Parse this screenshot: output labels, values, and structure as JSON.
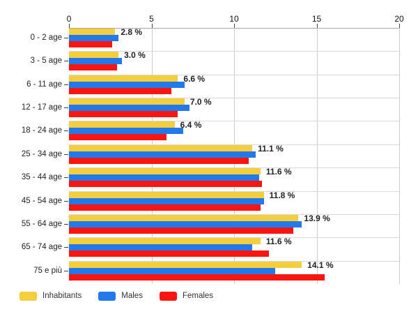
{
  "chart_data": {
    "type": "bar",
    "orientation": "horizontal",
    "categories": [
      "0 - 2 age",
      "3 - 5 age",
      "6 - 11 age",
      "12 - 17 age",
      "18 - 24 age",
      "25 - 34 age",
      "35 - 44 age",
      "45 - 54 age",
      "55 - 64 age",
      "65 - 74 age",
      "75 e più"
    ],
    "series": [
      {
        "name": "Inhabitants",
        "color": "#F5CE3E",
        "values": [
          2.8,
          3.0,
          6.6,
          7.0,
          6.4,
          11.1,
          11.6,
          11.8,
          13.9,
          11.6,
          14.1
        ]
      },
      {
        "name": "Males",
        "color": "#2279EC",
        "values": [
          3.0,
          3.2,
          7.0,
          7.3,
          6.9,
          11.3,
          11.5,
          11.8,
          14.1,
          11.1,
          12.5
        ]
      },
      {
        "name": "Females",
        "color": "#FB1510",
        "values": [
          2.6,
          2.9,
          6.2,
          6.6,
          5.9,
          10.9,
          11.7,
          11.6,
          13.6,
          12.1,
          15.5
        ]
      }
    ],
    "bar_labels": [
      "2.8 %",
      "3.0 %",
      "6.6 %",
      "7.0 %",
      "6.4 %",
      "11.1 %",
      "11.6 %",
      "11.8 %",
      "13.9 %",
      "11.6 %",
      "14.1 %"
    ],
    "x_ticks": [
      0,
      5,
      10,
      15,
      20
    ],
    "x_tick_labels": [
      "0",
      "5",
      "10",
      "15",
      "20"
    ],
    "xlim": [
      0,
      20
    ],
    "grid": true,
    "legend_position": "bottom",
    "colors": {
      "axis_line": "#a6a6a6",
      "gridline": "#cccccc",
      "row_gridline": "#d9d9d9",
      "tick": "#444444",
      "label_text": "#222222"
    }
  }
}
